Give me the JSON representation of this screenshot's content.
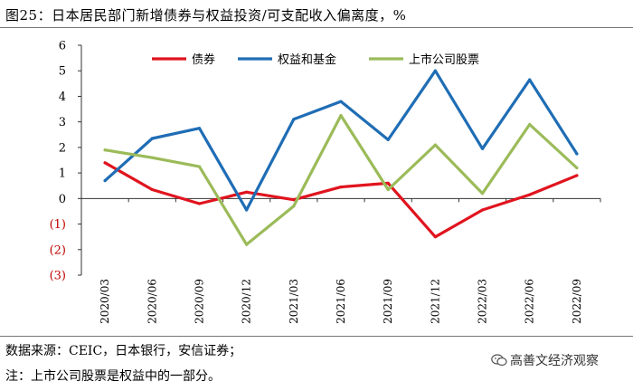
{
  "title": "图25：日本居民部门新增债券与权益投资/可支配收入偏离度，%",
  "source": "数据来源：CEIC，日本银行，安信证券；",
  "note": "注：上市公司股票是权益中的一部分。",
  "watermark": "高善文经济观察",
  "chart_data": {
    "type": "line",
    "title": "图25：日本居民部门新增债券与权益投资/可支配收入偏离度，%",
    "x": [
      "2020/03",
      "2020/06",
      "2020/09",
      "2020/12",
      "2021/03",
      "2021/06",
      "2021/09",
      "2021/12",
      "2022/03",
      "2022/06",
      "2022/09"
    ],
    "xtick_labels": [
      "2020/03",
      "2020/06",
      "2020/09",
      "2020/12",
      "2021/03",
      "2021/06",
      "2021/09",
      "2021/12",
      "2022/03",
      "2022/06",
      "2022/09"
    ],
    "ylim": [
      -3,
      6
    ],
    "yticks": [
      6,
      5,
      4,
      3,
      2,
      1,
      0,
      -1,
      -2,
      -3
    ],
    "ytick_labels": [
      "6",
      "5",
      "4",
      "3",
      "2",
      "1",
      "0",
      "(1)",
      "(2)",
      "(3)"
    ],
    "negative_tick_color": "#c00000",
    "grid": false,
    "legend_position": "top",
    "series": [
      {
        "name": "债券",
        "color": "#e0141e",
        "values": [
          1.4,
          0.35,
          -0.2,
          0.25,
          -0.05,
          0.45,
          0.6,
          -1.5,
          -0.45,
          0.15,
          0.9
        ]
      },
      {
        "name": "权益和基金",
        "color": "#1f6db5",
        "values": [
          0.7,
          2.35,
          2.75,
          -0.45,
          3.1,
          3.8,
          2.3,
          5.0,
          1.95,
          4.65,
          1.75
        ]
      },
      {
        "name": "上市公司股票",
        "color": "#9bbb59",
        "values": [
          1.9,
          1.6,
          1.25,
          -1.8,
          -0.3,
          3.25,
          0.35,
          2.1,
          0.2,
          2.9,
          1.2
        ]
      }
    ]
  }
}
